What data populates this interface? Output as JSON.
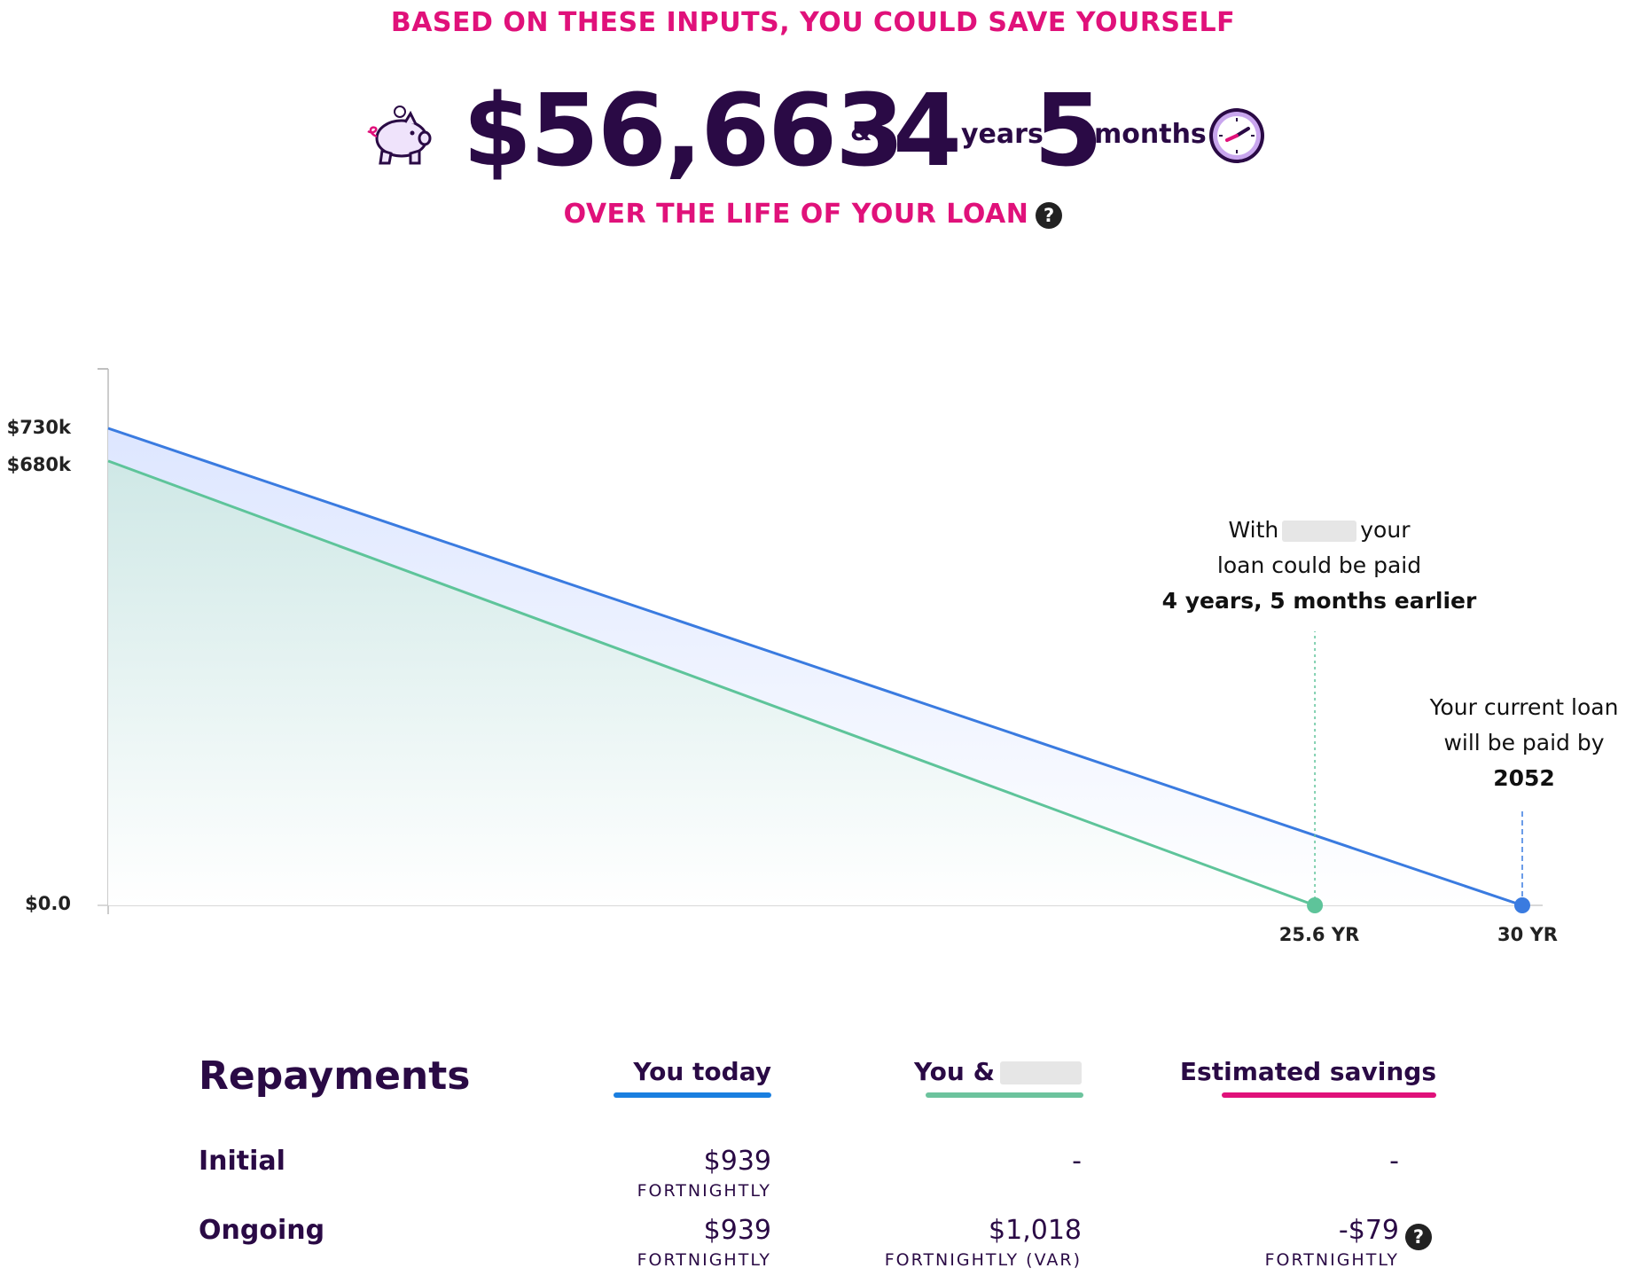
{
  "header": {
    "kicker_top": "BASED ON THESE INPUTS, YOU COULD SAVE YOURSELF",
    "amount": "$56,663",
    "amp": "&",
    "years_value": "4",
    "years_unit": "years",
    "months_value": "5",
    "months_unit": "months",
    "kicker_bottom": "OVER THE LIFE OF YOUR LOAN",
    "help_glyph": "?",
    "icons": [
      "piggy-bank-icon",
      "clock-icon",
      "help-icon"
    ]
  },
  "chart_data": {
    "type": "area",
    "y_ticks": [
      "$730k",
      "$680k",
      "$0.0"
    ],
    "x_ticks": [
      "25.6 YR",
      "30 YR"
    ],
    "series": [
      {
        "name": "You today",
        "color": "#3a7be0",
        "x": [
          0,
          30
        ],
        "y": [
          730,
          0
        ]
      },
      {
        "name": "You &",
        "color": "#5ec49a",
        "x": [
          0,
          25.6
        ],
        "y": [
          680,
          0
        ]
      }
    ],
    "ylim": [
      0,
      800
    ],
    "xlim": [
      0,
      30
    ],
    "annotations": {
      "green": {
        "line1_pre": "With",
        "line1_post": "your",
        "line2": "loan could be paid",
        "line3": "4 years, 5 months earlier"
      },
      "blue": {
        "line1": "Your current loan",
        "line2": "will be paid by",
        "line3": "2052"
      }
    }
  },
  "repayments": {
    "title": "Repayments",
    "columns": [
      {
        "label": "You today",
        "color": "#1a7fe0"
      },
      {
        "label": "You &",
        "color": "#6cc39d"
      },
      {
        "label": "Estimated savings",
        "color": "#e0117a"
      }
    ],
    "rows": [
      {
        "label": "Initial",
        "today": "$939",
        "today_sub": "FORTNIGHTLY",
        "with": "-",
        "with_sub": "",
        "savings": "-",
        "savings_sub": ""
      },
      {
        "label": "Ongoing",
        "today": "$939",
        "today_sub": "FORTNIGHTLY",
        "with": "$1,018",
        "with_sub": "FORTNIGHTLY (VAR)",
        "savings": "-$79",
        "savings_sub": "FORTNIGHTLY"
      }
    ]
  }
}
